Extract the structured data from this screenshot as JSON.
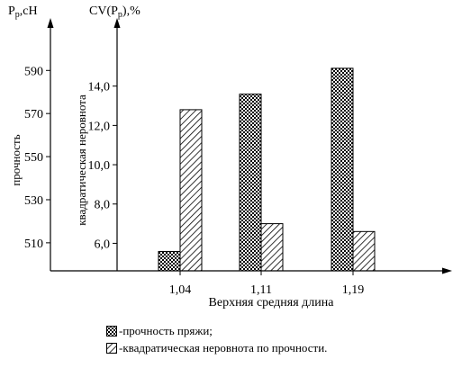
{
  "chart_data": {
    "type": "bar",
    "categories": [
      "1,04",
      "1,11",
      "1,19"
    ],
    "xlabel": "Верхняя средняя длина",
    "series": [
      {
        "name": "-прочность пряжи;",
        "axis": "left",
        "pattern": "checker",
        "values": [
          506,
          579,
          591
        ]
      },
      {
        "name": "-квадратическая неровнота по прочности.",
        "axis": "right",
        "pattern": "hatch",
        "values": [
          12.8,
          7.0,
          6.6
        ]
      }
    ],
    "left_axis": {
      "unit_label": "P",
      "unit_sub": "p",
      "unit_suffix": ",cH",
      "ylabel": "прочность",
      "ylim": [
        497,
        611
      ],
      "ticks": [
        510,
        530,
        550,
        570,
        590
      ]
    },
    "right_axis": {
      "unit_label": "CV(P",
      "unit_sub": "p",
      "unit_suffix": "),%",
      "ylabel": "квадратическая неровнота",
      "ylim": [
        4.6,
        17.1
      ],
      "ticks": [
        "6,0",
        "8,0",
        "10,0",
        "12,0",
        "14,0"
      ],
      "tick_values": [
        6,
        8,
        10,
        12,
        14
      ]
    },
    "colors": {
      "axis": "#000000",
      "bar_fill": "#ffffff"
    }
  }
}
